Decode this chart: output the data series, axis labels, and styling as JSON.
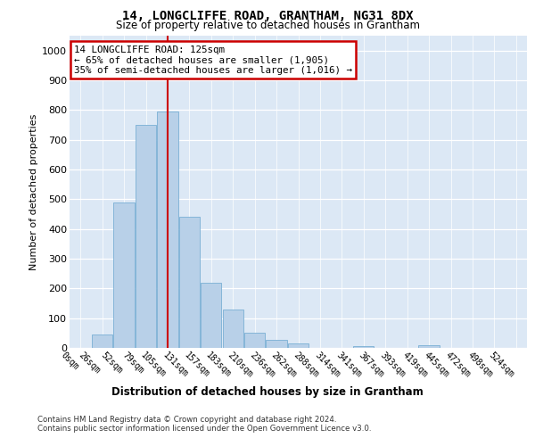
{
  "title": "14, LONGCLIFFE ROAD, GRANTHAM, NG31 8DX",
  "subtitle": "Size of property relative to detached houses in Grantham",
  "xlabel": "Distribution of detached houses by size in Grantham",
  "ylabel": "Number of detached properties",
  "bar_labels": [
    "0sqm",
    "26sqm",
    "52sqm",
    "79sqm",
    "105sqm",
    "131sqm",
    "157sqm",
    "183sqm",
    "210sqm",
    "236sqm",
    "262sqm",
    "288sqm",
    "314sqm",
    "341sqm",
    "367sqm",
    "393sqm",
    "419sqm",
    "445sqm",
    "472sqm",
    "498sqm",
    "524sqm"
  ],
  "bar_values": [
    0,
    45,
    490,
    750,
    795,
    440,
    220,
    130,
    52,
    28,
    15,
    0,
    0,
    7,
    0,
    0,
    8,
    0,
    0,
    0,
    0
  ],
  "bar_color": "#b8d0e8",
  "bar_edge_color": "#7aafd4",
  "red_line_index": 4.5,
  "annotation_text": "14 LONGCLIFFE ROAD: 125sqm\n← 65% of detached houses are smaller (1,905)\n35% of semi-detached houses are larger (1,016) →",
  "annotation_box_color": "#ffffff",
  "annotation_border_color": "#cc0000",
  "ylim": [
    0,
    1050
  ],
  "yticks": [
    0,
    100,
    200,
    300,
    400,
    500,
    600,
    700,
    800,
    900,
    1000
  ],
  "plot_bg_color": "#dce8f5",
  "grid_color": "#ffffff",
  "footer_line1": "Contains HM Land Registry data © Crown copyright and database right 2024.",
  "footer_line2": "Contains public sector information licensed under the Open Government Licence v3.0."
}
